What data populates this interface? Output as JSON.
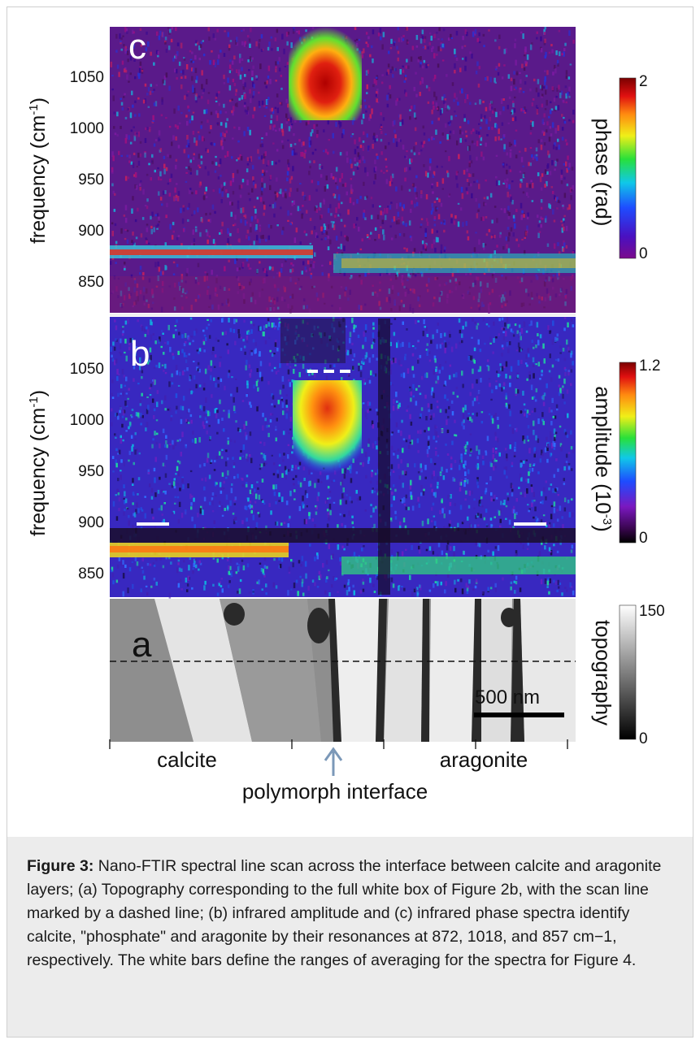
{
  "figure": {
    "panels": [
      {
        "letter": "c",
        "ylabel_main": "frequency (cm",
        "ylabel_sup": "-1",
        "ylabel_tail": ")",
        "yticks": [
          "1050",
          "1000",
          "950",
          "900",
          "850"
        ],
        "colorbar_label": "phase (rad)",
        "colorbar_max": "2",
        "colorbar_min": "0",
        "colormap": "jet"
      },
      {
        "letter": "b",
        "ylabel_main": "frequency (cm",
        "ylabel_sup": "-1",
        "ylabel_tail": ")",
        "yticks": [
          "1050",
          "1000",
          "950",
          "900",
          "850"
        ],
        "colorbar_label_main": "amplitude (10",
        "colorbar_label_sup": "-3",
        "colorbar_label_tail": ")",
        "colorbar_max": "1.2",
        "colorbar_min": "0",
        "colormap": "jet-with-black"
      },
      {
        "letter": "a",
        "colorbar_label": "topography",
        "colorbar_max": "150",
        "colorbar_min": "0",
        "colormap": "grayscale",
        "scalebar_label": "500 nm"
      }
    ],
    "x_annotations": {
      "left": "calcite",
      "right": "aragonite",
      "interface": "polymorph interface"
    },
    "colors": {
      "arrow": "#7b98b8",
      "caption_bg": "#ececec"
    }
  },
  "caption": {
    "label": "Figure 3:",
    "text": " Nano-FTIR spectral line scan across the interface between calcite and aragonite layers; (a) Topography corresponding to the full white box of Figure 2b, with the scan line marked by a dashed line; (b) infrared amplitude and (c) infrared phase spectra identify calcite, \"phosphate\" and aragonite by their resonances at 872, 1018, and 857 cm−1, respectively. The white bars define the ranges of averaging for the spectra for Figure 4."
  }
}
